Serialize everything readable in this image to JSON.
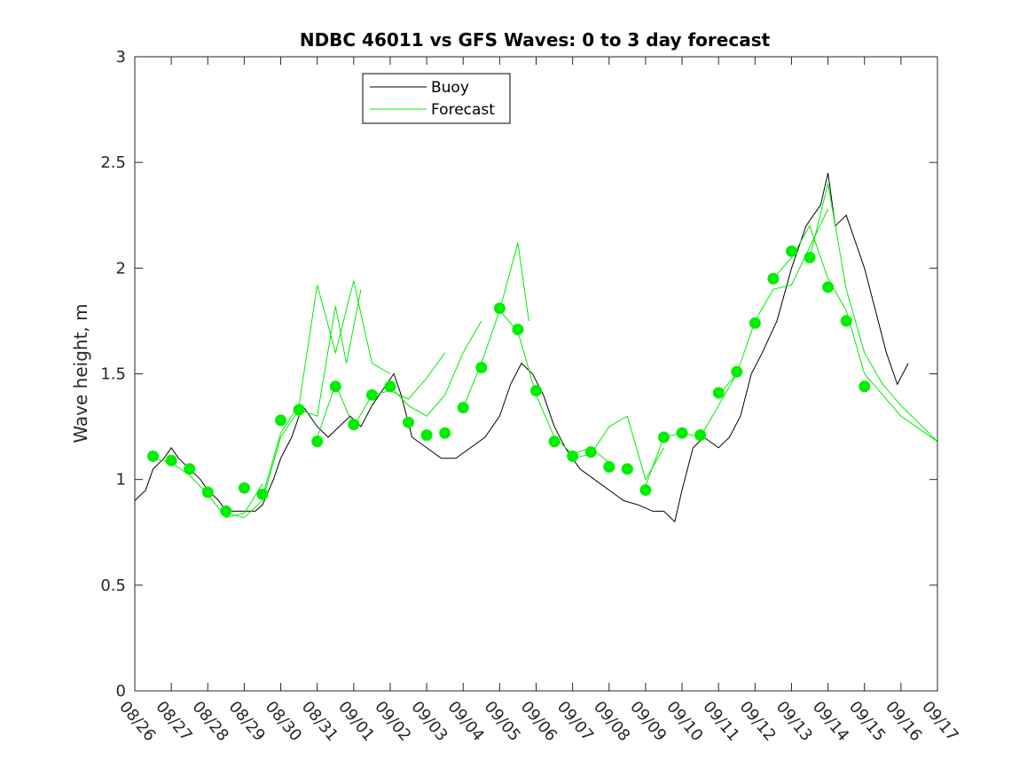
{
  "chart_data": {
    "type": "line",
    "title": "NDBC 46011 vs GFS Waves: 0 to 3 day forecast",
    "xlabel": "",
    "ylabel": "Wave height, m",
    "xlim": [
      0,
      22
    ],
    "ylim": [
      0,
      3
    ],
    "yticks": [
      0,
      0.5,
      1,
      1.5,
      2,
      2.5,
      3
    ],
    "ytick_labels": [
      "0",
      "0.5",
      "1",
      "1.5",
      "2",
      "2.5",
      "3"
    ],
    "xtick_labels": [
      "08/26",
      "08/27",
      "08/28",
      "08/29",
      "08/30",
      "08/31",
      "09/01",
      "09/02",
      "09/03",
      "09/04",
      "09/05",
      "09/06",
      "09/07",
      "09/08",
      "09/09",
      "09/10",
      "09/11",
      "09/12",
      "09/13",
      "09/14",
      "09/15",
      "09/16",
      "09/17"
    ],
    "x_units": "days since 08/26",
    "legend": {
      "position": "top-left",
      "entries": [
        "Buoy",
        "Forecast"
      ]
    },
    "colors": {
      "buoy": "#000000",
      "forecast": "#00ee00",
      "analysis_dots": "#00ee00"
    },
    "buoy": {
      "name": "Buoy",
      "points": [
        [
          0,
          0.9
        ],
        [
          0.3,
          0.95
        ],
        [
          0.5,
          1.05
        ],
        [
          0.8,
          1.1
        ],
        [
          1,
          1.15
        ],
        [
          1.2,
          1.1
        ],
        [
          1.5,
          1.05
        ],
        [
          1.8,
          1.0
        ],
        [
          2,
          0.95
        ],
        [
          2.3,
          0.9
        ],
        [
          2.5,
          0.85
        ],
        [
          2.8,
          0.85
        ],
        [
          3,
          0.85
        ],
        [
          3.3,
          0.85
        ],
        [
          3.5,
          0.88
        ],
        [
          3.8,
          1.0
        ],
        [
          4,
          1.1
        ],
        [
          4.3,
          1.2
        ],
        [
          4.6,
          1.35
        ],
        [
          5,
          1.25
        ],
        [
          5.3,
          1.2
        ],
        [
          5.6,
          1.25
        ],
        [
          5.9,
          1.3
        ],
        [
          6.2,
          1.25
        ],
        [
          6.5,
          1.35
        ],
        [
          6.9,
          1.45
        ],
        [
          7.1,
          1.5
        ],
        [
          7.3,
          1.4
        ],
        [
          7.6,
          1.2
        ],
        [
          8,
          1.15
        ],
        [
          8.4,
          1.1
        ],
        [
          8.8,
          1.1
        ],
        [
          9.2,
          1.15
        ],
        [
          9.6,
          1.2
        ],
        [
          10,
          1.3
        ],
        [
          10.3,
          1.45
        ],
        [
          10.6,
          1.55
        ],
        [
          10.9,
          1.5
        ],
        [
          11.2,
          1.4
        ],
        [
          11.5,
          1.25
        ],
        [
          11.8,
          1.15
        ],
        [
          12.2,
          1.05
        ],
        [
          12.6,
          1.0
        ],
        [
          13,
          0.95
        ],
        [
          13.4,
          0.9
        ],
        [
          13.8,
          0.88
        ],
        [
          14.2,
          0.85
        ],
        [
          14.5,
          0.85
        ],
        [
          14.8,
          0.8
        ],
        [
          15,
          0.95
        ],
        [
          15.3,
          1.15
        ],
        [
          15.6,
          1.2
        ],
        [
          16,
          1.15
        ],
        [
          16.3,
          1.2
        ],
        [
          16.6,
          1.3
        ],
        [
          16.9,
          1.5
        ],
        [
          17.2,
          1.6
        ],
        [
          17.6,
          1.75
        ],
        [
          18,
          2.0
        ],
        [
          18.4,
          2.2
        ],
        [
          18.8,
          2.3
        ],
        [
          19,
          2.45
        ],
        [
          19.2,
          2.2
        ],
        [
          19.5,
          2.25
        ],
        [
          19.8,
          2.1
        ],
        [
          20,
          2.0
        ],
        [
          20.3,
          1.8
        ],
        [
          20.6,
          1.6
        ],
        [
          20.9,
          1.45
        ],
        [
          21.2,
          1.55
        ]
      ]
    },
    "analysis_points": [
      [
        0.5,
        1.11
      ],
      [
        1,
        1.09
      ],
      [
        1.5,
        1.05
      ],
      [
        2,
        0.94
      ],
      [
        2.5,
        0.85
      ],
      [
        3,
        0.96
      ],
      [
        3.5,
        0.93
      ],
      [
        4,
        1.28
      ],
      [
        4.5,
        1.33
      ],
      [
        5,
        1.18
      ],
      [
        5.5,
        1.44
      ],
      [
        6,
        1.26
      ],
      [
        6.5,
        1.4
      ],
      [
        7,
        1.44
      ],
      [
        7.5,
        1.27
      ],
      [
        8,
        1.21
      ],
      [
        8.5,
        1.22
      ],
      [
        9,
        1.34
      ],
      [
        9.5,
        1.53
      ],
      [
        10,
        1.81
      ],
      [
        10.5,
        1.71
      ],
      [
        11,
        1.42
      ],
      [
        11.5,
        1.18
      ],
      [
        12,
        1.11
      ],
      [
        12.5,
        1.13
      ],
      [
        13,
        1.06
      ],
      [
        13.5,
        1.05
      ],
      [
        14,
        0.95
      ],
      [
        14.5,
        1.2
      ],
      [
        15,
        1.22
      ],
      [
        15.5,
        1.21
      ],
      [
        16,
        1.41
      ],
      [
        16.5,
        1.51
      ],
      [
        17,
        1.74
      ],
      [
        17.5,
        1.95
      ],
      [
        18,
        2.08
      ],
      [
        18.5,
        2.05
      ],
      [
        19,
        1.91
      ],
      [
        19.5,
        1.75
      ],
      [
        20,
        1.44
      ]
    ],
    "forecast_series": [
      {
        "name": "Forecast",
        "points": [
          [
            0.5,
            1.1
          ],
          [
            1,
            1.08
          ],
          [
            1.5,
            1.02
          ],
          [
            2,
            0.93
          ],
          [
            2.5,
            0.82
          ],
          [
            3,
            0.84
          ],
          [
            3.5,
            0.98
          ]
        ]
      },
      {
        "name": "Forecast",
        "points": [
          [
            2.5,
            0.84
          ],
          [
            3,
            0.82
          ],
          [
            3.5,
            0.9
          ],
          [
            4,
            1.2
          ],
          [
            4.5,
            1.33
          ],
          [
            5,
            1.3
          ],
          [
            5.5,
            1.82
          ],
          [
            5.8,
            1.55
          ],
          [
            6.2,
            1.9
          ]
        ]
      },
      {
        "name": "Forecast",
        "points": [
          [
            3.5,
            0.92
          ],
          [
            4,
            1.22
          ],
          [
            4.5,
            1.35
          ],
          [
            5,
            1.92
          ],
          [
            5.5,
            1.6
          ],
          [
            6,
            1.94
          ],
          [
            6.5,
            1.55
          ],
          [
            7,
            1.5
          ]
        ]
      },
      {
        "name": "Forecast",
        "points": [
          [
            5,
            1.2
          ],
          [
            5.5,
            1.45
          ],
          [
            6,
            1.25
          ],
          [
            6.5,
            1.4
          ],
          [
            7,
            1.42
          ],
          [
            7.5,
            1.38
          ],
          [
            8,
            1.48
          ],
          [
            8.5,
            1.6
          ]
        ]
      },
      {
        "name": "Forecast",
        "points": [
          [
            7,
            1.44
          ],
          [
            7.5,
            1.35
          ],
          [
            8,
            1.3
          ],
          [
            8.5,
            1.4
          ],
          [
            9,
            1.6
          ],
          [
            9.5,
            1.75
          ]
        ]
      },
      {
        "name": "Forecast",
        "points": [
          [
            9,
            1.34
          ],
          [
            9.5,
            1.55
          ],
          [
            10,
            1.8
          ],
          [
            10.5,
            2.12
          ],
          [
            10.8,
            1.75
          ]
        ]
      },
      {
        "name": "Forecast",
        "points": [
          [
            10,
            1.8
          ],
          [
            10.5,
            1.7
          ],
          [
            11,
            1.4
          ],
          [
            11.5,
            1.2
          ],
          [
            12,
            1.12
          ],
          [
            12.5,
            1.15
          ],
          [
            13,
            1.08
          ]
        ]
      },
      {
        "name": "Forecast",
        "points": [
          [
            12,
            1.1
          ],
          [
            12.5,
            1.12
          ],
          [
            13,
            1.25
          ],
          [
            13.5,
            1.3
          ],
          [
            14,
            1.0
          ],
          [
            14.5,
            1.15
          ]
        ]
      },
      {
        "name": "Forecast",
        "points": [
          [
            14,
            0.97
          ],
          [
            14.5,
            1.2
          ],
          [
            15,
            1.22
          ],
          [
            15.5,
            1.2
          ],
          [
            16,
            1.35
          ],
          [
            16.5,
            1.5
          ]
        ]
      },
      {
        "name": "Forecast",
        "points": [
          [
            16,
            1.4
          ],
          [
            16.5,
            1.5
          ],
          [
            17,
            1.75
          ],
          [
            17.5,
            1.9
          ],
          [
            18,
            1.92
          ],
          [
            18.5,
            2.1
          ],
          [
            19,
            2.28
          ]
        ]
      },
      {
        "name": "Forecast",
        "points": [
          [
            17.5,
            1.95
          ],
          [
            18,
            2.05
          ],
          [
            18.5,
            2.2
          ],
          [
            19,
            1.95
          ],
          [
            19.5,
            1.8
          ],
          [
            20,
            1.5
          ],
          [
            20.5,
            1.4
          ],
          [
            21,
            1.3
          ],
          [
            22,
            1.18
          ]
        ]
      },
      {
        "name": "Forecast",
        "points": [
          [
            18.5,
            2.05
          ],
          [
            19,
            2.4
          ],
          [
            19.5,
            1.9
          ],
          [
            20,
            1.6
          ],
          [
            20.5,
            1.45
          ],
          [
            21,
            1.35
          ],
          [
            22,
            1.18
          ]
        ]
      }
    ]
  }
}
